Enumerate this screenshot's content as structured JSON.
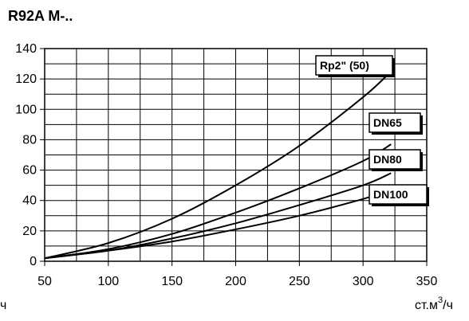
{
  "header": {
    "title": "R92A M-.."
  },
  "chart_data": {
    "type": "line",
    "title": "R92A M-..",
    "xlabel": "ст.м3/ч",
    "xlabel_left_fragment": "ч",
    "ylabel": "",
    "xlim": [
      50,
      350
    ],
    "ylim": [
      0,
      140
    ],
    "xticks": [
      50,
      100,
      150,
      200,
      250,
      300,
      350
    ],
    "yticks": [
      0,
      20,
      40,
      60,
      80,
      100,
      120,
      140
    ],
    "grid": true,
    "series": [
      {
        "name": "Rp2\" (50)",
        "x": [
          50,
          100,
          150,
          200,
          250,
          300,
          322
        ],
        "y": [
          2,
          12,
          28,
          50,
          76,
          108,
          125
        ]
      },
      {
        "name": "DN65",
        "x": [
          50,
          100,
          150,
          200,
          250,
          300,
          322
        ],
        "y": [
          2,
          8,
          18,
          32,
          48,
          66,
          77
        ]
      },
      {
        "name": "DN80",
        "x": [
          50,
          100,
          150,
          200,
          250,
          300,
          322
        ],
        "y": [
          2,
          7,
          15,
          25,
          37,
          50,
          58
        ]
      },
      {
        "name": "DN100",
        "x": [
          50,
          100,
          150,
          200,
          250,
          300,
          322
        ],
        "y": [
          2,
          7,
          13,
          21,
          30,
          41,
          47
        ]
      }
    ],
    "xlabel_parts": {
      "prefix": "ст.м",
      "sup": "3",
      "suffix": "/ч"
    }
  }
}
